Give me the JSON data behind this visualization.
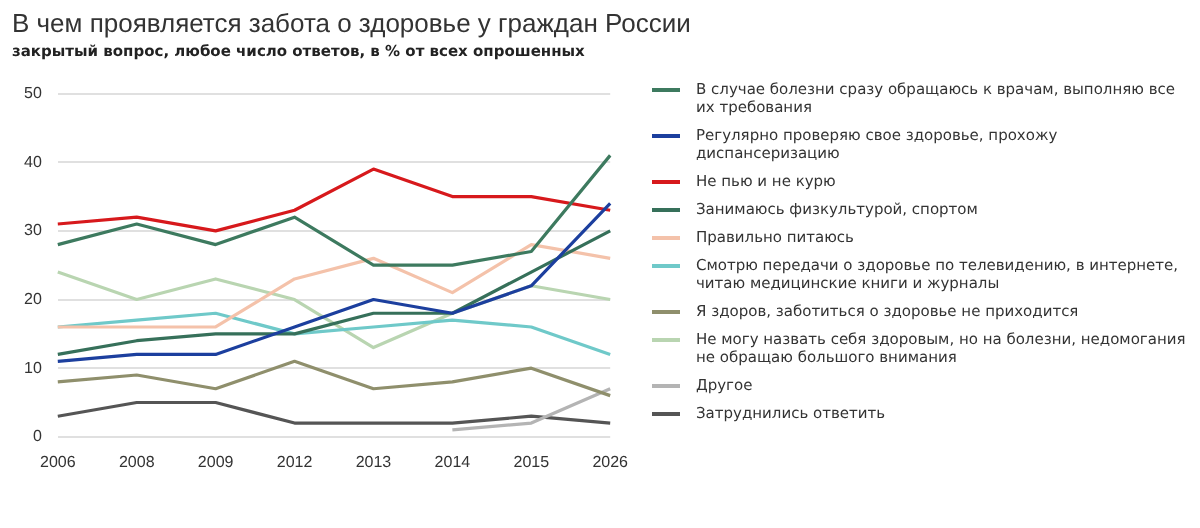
{
  "chart_data": {
    "type": "line",
    "title": "В чем проявляется забота о здоровье у граждан России",
    "subtitle": "закрытый вопрос, любое число ответов, в % от всех опрошенных",
    "categories": [
      "2006",
      "2008",
      "2009",
      "2012",
      "2013",
      "2014",
      "2015",
      "2026"
    ],
    "ylim": [
      0,
      50
    ],
    "yticks": [
      0,
      10,
      20,
      30,
      40,
      50
    ],
    "grid": "y",
    "legend": "right",
    "series": [
      {
        "name": "В случае болезни сразу обращаюсь к врачам, выполняю все их требования",
        "color": "#3d7a5f",
        "values": [
          28,
          31,
          28,
          32,
          25,
          25,
          27,
          41
        ]
      },
      {
        "name": "Регулярно проверяю свое здоровье, прохожу диспансеризацию",
        "color": "#1c3f9e",
        "values": [
          11,
          12,
          12,
          16,
          20,
          18,
          22,
          34
        ]
      },
      {
        "name": "Не пью и не курю",
        "color": "#d7191c",
        "values": [
          31,
          32,
          30,
          33,
          39,
          35,
          35,
          33
        ]
      },
      {
        "name": "Занимаюсь физкультурой, спортом",
        "color": "#36705a",
        "values": [
          12,
          14,
          15,
          15,
          18,
          18,
          24,
          30
        ]
      },
      {
        "name": "Правильно питаюсь",
        "color": "#f4c2aa",
        "values": [
          16,
          16,
          16,
          23,
          26,
          21,
          28,
          26
        ]
      },
      {
        "name": "Смотрю передачи о здоровье по телевидению, в интернете, читаю медицинские книги и журналы",
        "color": "#6fc9c9",
        "values": [
          16,
          17,
          18,
          15,
          16,
          17,
          16,
          12
        ]
      },
      {
        "name": "Я здоров, заботиться о здоровье не приходится",
        "color": "#8f8f6c",
        "values": [
          8,
          9,
          7,
          11,
          7,
          8,
          10,
          6
        ]
      },
      {
        "name": "Не могу назвать себя здоровым, но на болезни, недомогания не обращаю большого внимания",
        "color": "#b9d5b1",
        "values": [
          24,
          20,
          23,
          20,
          13,
          18,
          22,
          20
        ]
      },
      {
        "name": "Другое",
        "color": "#b4b4b4",
        "values": [
          null,
          null,
          null,
          null,
          null,
          1,
          2,
          7
        ]
      },
      {
        "name": "Затруднились ответить",
        "color": "#555555",
        "values": [
          3,
          5,
          5,
          2,
          2,
          2,
          3,
          2
        ]
      }
    ]
  }
}
